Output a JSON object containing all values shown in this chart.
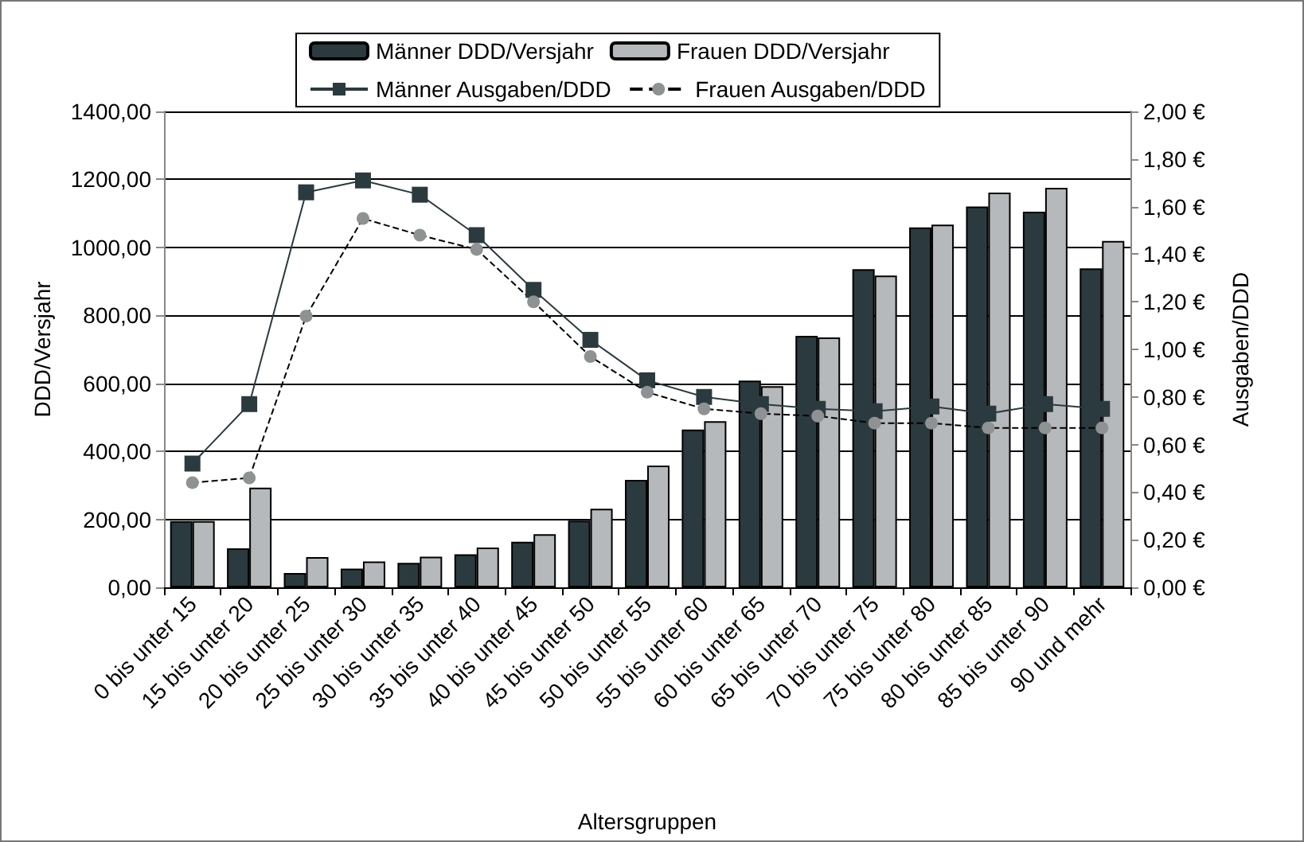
{
  "chart_data": {
    "type": "bar",
    "xlabel": "Altersgruppen",
    "ylabel": "DDD/Versjahr",
    "y2label": "Ausgaben/DDD",
    "categories": [
      "0 bis unter 15",
      "15 bis unter 20",
      "20 bis unter 25",
      "25 bis unter 30",
      "30 bis unter 35",
      "35 bis unter 40",
      "40 bis unter 45",
      "45 bis unter 50",
      "50 bis unter 55",
      "55 bis unter 60",
      "60 bis unter 65",
      "65 bis unter 70",
      "70 bis unter 75",
      "75 bis unter 80",
      "80 bis unter 85",
      "85 bis unter 90",
      "90 und mehr"
    ],
    "series": [
      {
        "name": "Männer DDD/Versjahr",
        "color": "#2b3a3e",
        "values": [
          195,
          115,
          42,
          55,
          72,
          97,
          134,
          196,
          316,
          464,
          608,
          740,
          936,
          1059,
          1120,
          1105,
          938
        ]
      },
      {
        "name": "Frauen DDD/Versjahr",
        "color": "#b6b9bb",
        "values": [
          195,
          293,
          89,
          76,
          90,
          117,
          156,
          231,
          358,
          489,
          592,
          735,
          917,
          1067,
          1161,
          1175,
          1019
        ]
      },
      {
        "name": "Männer Ausgaben/DDD",
        "type": "line",
        "axis": "y2",
        "color": "#2b3a3e",
        "marker": "square",
        "line_style": "solid",
        "values": [
          0.52,
          0.77,
          1.66,
          1.71,
          1.65,
          1.48,
          1.25,
          1.04,
          0.87,
          0.8,
          0.77,
          0.75,
          0.74,
          0.76,
          0.73,
          0.77,
          0.75
        ]
      },
      {
        "name": "Frauen Ausgaben/DDD",
        "type": "line",
        "axis": "y2",
        "color": "#8f9293",
        "marker": "circle",
        "line_style": "dashed",
        "values": [
          0.44,
          0.46,
          1.14,
          1.55,
          1.48,
          1.42,
          1.2,
          0.97,
          0.82,
          0.75,
          0.73,
          0.72,
          0.69,
          0.69,
          0.67,
          0.67,
          0.67
        ]
      }
    ],
    "ylim": [
      0,
      1400
    ],
    "yticks": [
      {
        "value": 0,
        "label": "0,00"
      },
      {
        "value": 200,
        "label": "200,00"
      },
      {
        "value": 400,
        "label": "400,00"
      },
      {
        "value": 600,
        "label": "600,00"
      },
      {
        "value": 800,
        "label": "800,00"
      },
      {
        "value": 1000,
        "label": "1000,00"
      },
      {
        "value": 1200,
        "label": "1200,00"
      },
      {
        "value": 1400,
        "label": "1400,00"
      }
    ],
    "y2lim": [
      0,
      2
    ],
    "y2ticks": [
      {
        "value": 0,
        "label": "0,00 €"
      },
      {
        "value": 0.2,
        "label": "0,20 €"
      },
      {
        "value": 0.4,
        "label": "0,40 €"
      },
      {
        "value": 0.6,
        "label": "0,60 €"
      },
      {
        "value": 0.8,
        "label": "0,80 €"
      },
      {
        "value": 1.0,
        "label": "1,00 €"
      },
      {
        "value": 1.2,
        "label": "1,20 €"
      },
      {
        "value": 1.4,
        "label": "1,40 €"
      },
      {
        "value": 1.6,
        "label": "1,60 €"
      },
      {
        "value": 1.8,
        "label": "1,80 €"
      },
      {
        "value": 2.0,
        "label": "2,00 €"
      }
    ],
    "grid": "y",
    "legend": "top"
  }
}
